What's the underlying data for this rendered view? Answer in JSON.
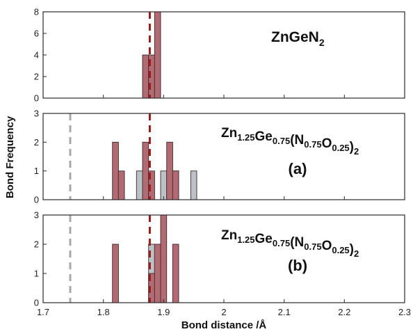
{
  "chart_data": {
    "type": "bar",
    "xlabel": "Bond distance /Å",
    "ylabel": "Bond Frequency",
    "xlim": [
      1.7,
      2.3
    ],
    "x_ticks": [
      1.7,
      1.8,
      1.9,
      2,
      2.1,
      2.2,
      2.3
    ],
    "x_tick_labels": [
      "1.7",
      "1.8",
      "1.9",
      "2",
      "2.1",
      "2.2",
      "2.3"
    ],
    "bin_width": 0.01,
    "colors": {
      "main": "#b36b73",
      "secondary": "#bcc1c6",
      "ref_red": "#9b1b1b",
      "ref_grey": "#a8a8a8",
      "frame": "#2b2b2b"
    },
    "panels": [
      {
        "id": "top",
        "title": {
          "base": "ZnGeN",
          "sub": "2"
        },
        "label": "",
        "ylim": [
          0,
          8
        ],
        "y_ticks": [
          0,
          2,
          4,
          6,
          8
        ],
        "y_tick_labels": [
          "0",
          "2",
          "4",
          "6",
          "8"
        ],
        "series": [
          {
            "color_key": "main",
            "bars": [
              {
                "x": 1.87,
                "value": 4
              },
              {
                "x": 1.88,
                "value": 4
              },
              {
                "x": 1.89,
                "value": 8
              }
            ]
          }
        ],
        "ref_lines": [
          {
            "x": 1.877,
            "color_key": "ref_red"
          }
        ]
      },
      {
        "id": "a",
        "title": {
          "parts": [
            {
              "t": "Zn",
              "s": "1.25"
            },
            {
              "t": "Ge",
              "s": "0.75"
            },
            {
              "t": "(N",
              "s": "0.75"
            },
            {
              "t": "O",
              "s": "0.25"
            },
            {
              "t": ")",
              "s": "2"
            }
          ]
        },
        "label": "(a)",
        "ylim": [
          0,
          3
        ],
        "y_ticks": [
          0,
          1,
          2,
          3
        ],
        "y_tick_labels": [
          "0",
          "1",
          "2",
          "3"
        ],
        "series": [
          {
            "color_key": "secondary",
            "bars": [
              {
                "x": 1.86,
                "value": 1
              },
              {
                "x": 1.9,
                "value": 1
              },
              {
                "x": 1.92,
                "value": 1
              },
              {
                "x": 1.95,
                "value": 1
              }
            ]
          },
          {
            "color_key": "main",
            "bars": [
              {
                "x": 1.82,
                "value": 2
              },
              {
                "x": 1.83,
                "value": 1
              },
              {
                "x": 1.87,
                "value": 2
              },
              {
                "x": 1.88,
                "value": 1
              },
              {
                "x": 1.91,
                "value": 2
              },
              {
                "x": 1.92,
                "value": 1
              }
            ]
          }
        ],
        "ref_lines": [
          {
            "x": 1.745,
            "color_key": "ref_grey"
          },
          {
            "x": 1.877,
            "color_key": "ref_red"
          }
        ]
      },
      {
        "id": "b",
        "title": {
          "parts": [
            {
              "t": "Zn",
              "s": "1.25"
            },
            {
              "t": "Ge",
              "s": "0.75"
            },
            {
              "t": "(N",
              "s": "0.75"
            },
            {
              "t": "O",
              "s": "0.25"
            },
            {
              "t": ")",
              "s": "2"
            }
          ]
        },
        "label": "(b)",
        "ylim": [
          0,
          3
        ],
        "y_ticks": [
          0,
          1,
          2,
          3
        ],
        "y_tick_labels": [
          "0",
          "1",
          "2",
          "3"
        ],
        "series": [
          {
            "color_key": "secondary",
            "bars": [
              {
                "x": 1.88,
                "value": 2
              }
            ]
          },
          {
            "color_key": "main",
            "bars": [
              {
                "x": 1.82,
                "value": 2
              },
              {
                "x": 1.88,
                "value": 1
              },
              {
                "x": 1.89,
                "value": 2
              },
              {
                "x": 1.9,
                "value": 3
              },
              {
                "x": 1.92,
                "value": 2
              }
            ]
          }
        ],
        "ref_lines": [
          {
            "x": 1.745,
            "color_key": "ref_grey"
          },
          {
            "x": 1.877,
            "color_key": "ref_red"
          }
        ]
      }
    ]
  }
}
